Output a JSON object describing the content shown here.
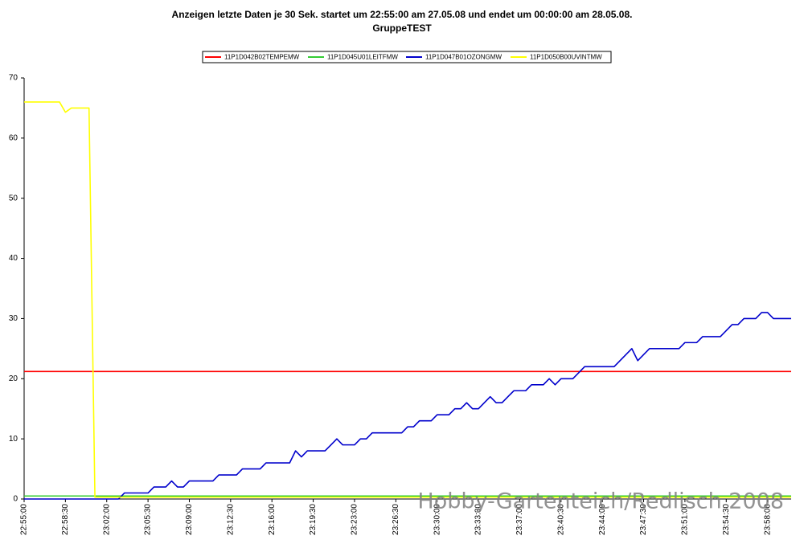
{
  "chart_data": {
    "type": "line",
    "title": "Anzeigen  letzte Daten je  30 Sek. startet um 22:55:00 am  27.05.08 und endet um 00:00:00 am  28.05.08.",
    "subtitle": "GruppeTEST",
    "watermark": "Hobby-Gartenteich/Redlisch 2008",
    "categories": [
      "22:55:00",
      null,
      null,
      null,
      null,
      null,
      null,
      "22:58:30",
      null,
      null,
      null,
      null,
      null,
      null,
      "23:02:00",
      null,
      null,
      null,
      null,
      null,
      null,
      "23:05:30",
      null,
      null,
      null,
      null,
      null,
      null,
      "23:09:00",
      null,
      null,
      null,
      null,
      null,
      null,
      "23:12:30",
      null,
      null,
      null,
      null,
      null,
      null,
      "23:16:00",
      null,
      null,
      null,
      null,
      null,
      null,
      "23:19:30",
      null,
      null,
      null,
      null,
      null,
      null,
      "23:23:00",
      null,
      null,
      null,
      null,
      null,
      null,
      "23:26:30",
      null,
      null,
      null,
      null,
      null,
      null,
      "23:30:00",
      null,
      null,
      null,
      null,
      null,
      null,
      "23:33:30",
      null,
      null,
      null,
      null,
      null,
      null,
      "23:37:00",
      null,
      null,
      null,
      null,
      null,
      null,
      "23:40:30",
      null,
      null,
      null,
      null,
      null,
      null,
      "23:44:00",
      null,
      null,
      null,
      null,
      null,
      null,
      "23:47:30",
      null,
      null,
      null,
      null,
      null,
      null,
      "23:51:00",
      null,
      null,
      null,
      null,
      null,
      null,
      "23:54:30",
      null,
      null,
      null,
      null,
      null,
      null,
      "23:58:00",
      null,
      null,
      null,
      null
    ],
    "series": [
      {
        "name": "11P1D042B02TEMPEMW",
        "color": "#ff0000",
        "values": [
          21.2,
          21.2,
          21.2,
          21.2,
          21.2,
          21.2,
          21.2,
          21.2,
          21.2,
          21.2,
          21.2,
          21.2,
          21.2,
          21.2,
          21.2,
          21.2,
          21.2,
          21.2,
          21.2,
          21.2,
          21.2,
          21.2,
          21.2,
          21.2,
          21.2,
          21.2,
          21.2,
          21.2,
          21.2,
          21.2,
          21.2,
          21.2,
          21.2,
          21.2,
          21.2,
          21.2,
          21.2,
          21.2,
          21.2,
          21.2,
          21.2,
          21.2,
          21.2,
          21.2,
          21.2,
          21.2,
          21.2,
          21.2,
          21.2,
          21.2,
          21.2,
          21.2,
          21.2,
          21.2,
          21.2,
          21.2,
          21.2,
          21.2,
          21.2,
          21.2,
          21.2,
          21.2,
          21.2,
          21.2,
          21.2,
          21.2,
          21.2,
          21.2,
          21.2,
          21.2,
          21.2,
          21.2,
          21.2,
          21.2,
          21.2,
          21.2,
          21.2,
          21.2,
          21.2,
          21.2,
          21.2,
          21.2,
          21.2,
          21.2,
          21.2,
          21.2,
          21.2,
          21.2,
          21.2,
          21.2,
          21.2,
          21.2,
          21.2,
          21.2,
          21.2,
          21.2,
          21.2,
          21.2,
          21.2,
          21.2,
          21.2,
          21.2,
          21.2,
          21.2,
          21.2,
          21.2,
          21.2,
          21.2,
          21.2,
          21.2,
          21.2,
          21.2,
          21.2,
          21.2,
          21.2,
          21.2,
          21.2,
          21.2,
          21.2,
          21.2,
          21.2,
          21.2,
          21.2,
          21.2,
          21.2,
          21.2,
          21.2,
          21.2,
          21.2,
          21.2,
          21.2
        ]
      },
      {
        "name": "11P1D045U01LEITFMW",
        "color": "#33cc33",
        "values": [
          0.5,
          0.5,
          0.5,
          0.5,
          0.5,
          0.5,
          0.5,
          0.5,
          0.5,
          0.5,
          0.5,
          0.5,
          0.5,
          0.5,
          0.5,
          0.5,
          0.5,
          0.5,
          0.5,
          0.5,
          0.5,
          0.5,
          0.5,
          0.5,
          0.5,
          0.5,
          0.5,
          0.5,
          0.5,
          0.5,
          0.5,
          0.5,
          0.5,
          0.5,
          0.5,
          0.5,
          0.5,
          0.5,
          0.5,
          0.5,
          0.5,
          0.5,
          0.5,
          0.5,
          0.5,
          0.5,
          0.5,
          0.5,
          0.5,
          0.5,
          0.5,
          0.5,
          0.5,
          0.5,
          0.5,
          0.5,
          0.5,
          0.5,
          0.5,
          0.5,
          0.5,
          0.5,
          0.5,
          0.5,
          0.5,
          0.5,
          0.5,
          0.5,
          0.5,
          0.5,
          0.5,
          0.5,
          0.5,
          0.5,
          0.5,
          0.5,
          0.5,
          0.5,
          0.5,
          0.5,
          0.5,
          0.5,
          0.5,
          0.5,
          0.5,
          0.5,
          0.5,
          0.5,
          0.5,
          0.5,
          0.5,
          0.5,
          0.5,
          0.5,
          0.5,
          0.5,
          0.5,
          0.5,
          0.5,
          0.5,
          0.5,
          0.5,
          0.5,
          0.5,
          0.5,
          0.5,
          0.5,
          0.5,
          0.5,
          0.5,
          0.5,
          0.5,
          0.5,
          0.5,
          0.5,
          0.5,
          0.5,
          0.5,
          0.5,
          0.5,
          0.5,
          0.5,
          0.5,
          0.5,
          0.5,
          0.5,
          0.5,
          0.5,
          0.5,
          0.5,
          0.5
        ]
      },
      {
        "name": "11P1D047B01OZONGMW",
        "color": "#0000cc",
        "values": [
          0,
          0,
          0,
          0,
          0,
          0,
          0,
          0,
          0,
          0,
          0,
          0,
          0,
          0,
          0,
          0,
          0,
          1,
          1,
          1,
          1,
          1,
          2,
          2,
          2,
          3,
          2,
          2,
          3,
          3,
          3,
          3,
          3,
          4,
          4,
          4,
          4,
          5,
          5,
          5,
          5,
          6,
          6,
          6,
          6,
          6,
          8,
          7,
          8,
          8,
          8,
          8,
          9,
          10,
          9,
          9,
          9,
          10,
          10,
          11,
          11,
          11,
          11,
          11,
          11,
          12,
          12,
          13,
          13,
          13,
          14,
          14,
          14,
          15,
          15,
          16,
          15,
          15,
          16,
          17,
          16,
          16,
          17,
          18,
          18,
          18,
          19,
          19,
          19,
          20,
          19,
          20,
          20,
          20,
          21,
          22,
          22,
          22,
          22,
          22,
          22,
          23,
          24,
          25,
          23,
          24,
          25,
          25,
          25,
          25,
          25,
          25,
          26,
          26,
          26,
          27,
          27,
          27,
          27,
          28,
          29,
          29,
          30,
          30,
          30,
          31,
          31,
          30,
          30,
          30,
          30
        ]
      },
      {
        "name": "11P1D050B00UVINTMW",
        "color": "#ffff00",
        "values": [
          66,
          66,
          66,
          66,
          66,
          66,
          66,
          64.3,
          65,
          65,
          65,
          65,
          0.3,
          0.3,
          0.3,
          0.3,
          0.3,
          0.3,
          0.3,
          0.3,
          0.3,
          0.3,
          0.3,
          0.3,
          0.3,
          0.3,
          0.3,
          0.3,
          0.3,
          0.3,
          0.3,
          0.3,
          0.3,
          0.3,
          0.3,
          0.3,
          0.3,
          0.3,
          0.3,
          0.3,
          0.3,
          0.3,
          0.3,
          0.3,
          0.3,
          0.3,
          0.3,
          0.3,
          0.3,
          0.3,
          0.3,
          0.3,
          0.3,
          0.3,
          0.3,
          0.3,
          0.3,
          0.3,
          0.3,
          0.3,
          0.3,
          0.3,
          0.3,
          0.3,
          0.3,
          0.3,
          0.3,
          0.3,
          0.3,
          0.3,
          0.3,
          0.3,
          0.3,
          0.3,
          0.3,
          0.3,
          0.3,
          0.3,
          0.3,
          0.3,
          0.3,
          0.3,
          0.3,
          0.3,
          0.3,
          0.3,
          0.3,
          0.3,
          0.3,
          0.3,
          0.3,
          0.3,
          0.3,
          0.3,
          0.3,
          0.3,
          0.3,
          0.3,
          0.3,
          0.3,
          0.3,
          0.3,
          0.3,
          0.3,
          0.3,
          0.3,
          0.3,
          0.3,
          0.3,
          0.3,
          0.3,
          0.3,
          0.3,
          0.3,
          0.3,
          0.3,
          0.3,
          0.3,
          0.3,
          0.3,
          0.3,
          0.3,
          0.3,
          0.3,
          0.3,
          0.3,
          0.3,
          0.3,
          0.3,
          0.3,
          0.3
        ]
      }
    ],
    "ylim": [
      0,
      70
    ],
    "yticks": [
      0,
      10,
      20,
      30,
      40,
      50,
      60,
      70
    ],
    "grid": false
  }
}
